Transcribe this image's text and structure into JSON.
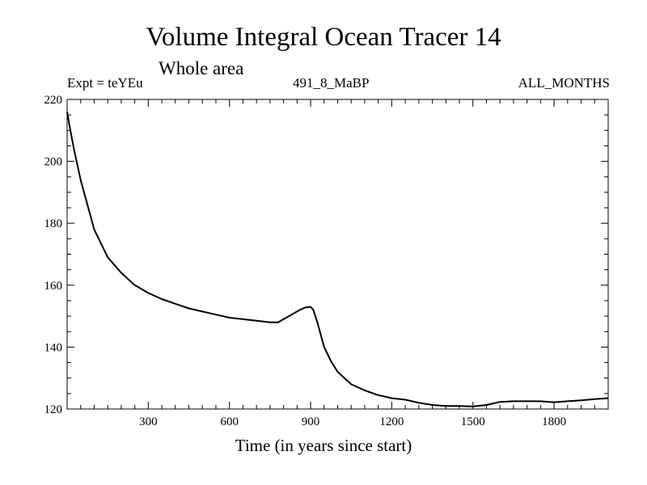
{
  "chart_data": {
    "type": "line",
    "title": "Volume Integral Ocean Tracer 14",
    "subtitle": "Whole area",
    "experiment_label": "Expt = teYEu",
    "run_label": "491_8_MaBP",
    "period_label": "ALL_MONTHS",
    "xlabel": "Time (in years since start)",
    "ylabel": "",
    "xlim": [
      0,
      2000
    ],
    "ylim": [
      120,
      220
    ],
    "xticks": [
      300,
      600,
      900,
      1200,
      1500,
      1800
    ],
    "xtick_labels": [
      "300",
      "600",
      "900",
      "1200",
      "1500",
      "1800"
    ],
    "yticks": [
      120,
      140,
      160,
      180,
      200,
      220
    ],
    "ytick_labels": [
      "120",
      "140",
      "160",
      "180",
      "200",
      "220"
    ],
    "series": [
      {
        "name": "tracer14",
        "color": "#000000",
        "x": [
          0,
          10,
          25,
          50,
          75,
          100,
          150,
          200,
          250,
          300,
          350,
          400,
          450,
          500,
          550,
          600,
          650,
          700,
          750,
          780,
          800,
          830,
          860,
          880,
          900,
          910,
          925,
          950,
          975,
          1000,
          1050,
          1100,
          1150,
          1200,
          1250,
          1300,
          1350,
          1400,
          1450,
          1500,
          1550,
          1600,
          1650,
          1700,
          1750,
          1800,
          1850,
          1900,
          1950,
          2000
        ],
        "values": [
          216,
          211,
          204,
          194,
          186,
          178,
          169,
          164,
          160,
          157.5,
          155.5,
          154,
          152.5,
          151.5,
          150.5,
          149.5,
          149,
          148.5,
          148,
          148,
          149,
          150.5,
          152,
          152.8,
          153,
          152,
          148,
          140,
          135.5,
          132,
          128,
          126,
          124.5,
          123.5,
          123,
          122,
          121.3,
          121,
          121,
          120.8,
          121.3,
          122.3,
          122.5,
          122.5,
          122.5,
          122.2,
          122.5,
          122.8,
          123.2,
          123.5
        ]
      }
    ]
  }
}
